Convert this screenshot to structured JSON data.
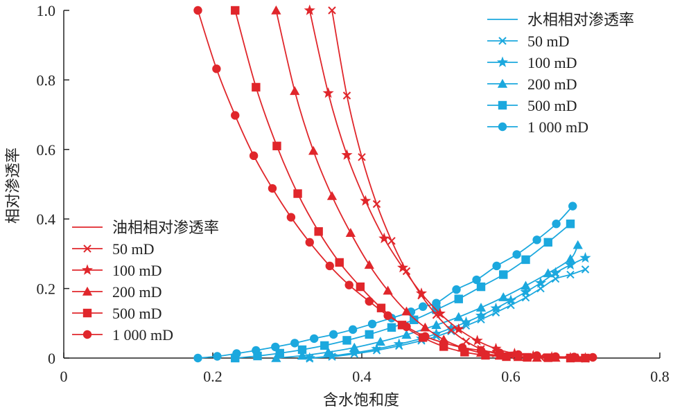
{
  "chart_data": {
    "type": "line",
    "xlabel": "含水饱和度",
    "ylabel": "相对渗透率",
    "xlim": [
      0,
      0.8
    ],
    "ylim": [
      0,
      1.0
    ],
    "xticks": [
      "0",
      "0.2",
      "0.4",
      "0.6",
      "0.8"
    ],
    "yticks": [
      "0",
      "0.2",
      "0.4",
      "0.6",
      "0.8",
      "1.0"
    ],
    "colors": {
      "oil": "#e0262b",
      "water": "#1ba8de"
    },
    "legend_placement": {
      "oil": "bottom-left",
      "water": "top-right"
    },
    "oil_legend": {
      "title": "油相相对渗透率",
      "items": [
        "50 mD",
        "100 mD",
        "200 mD",
        "500 mD",
        "1 000 mD"
      ]
    },
    "water_legend": {
      "title": "水相相对渗透率",
      "items": [
        "50 mD",
        "100 mD",
        "200 mD",
        "500 mD",
        "1 000 mD"
      ]
    },
    "series": [
      {
        "phase": "oil",
        "permeability": "50 mD",
        "marker": "x",
        "x": [
          0.36,
          0.38,
          0.4,
          0.42,
          0.44,
          0.46,
          0.48,
          0.5,
          0.52,
          0.54,
          0.56,
          0.58,
          0.6,
          0.62,
          0.64,
          0.66,
          0.68,
          0.7
        ],
        "y": [
          1.0,
          0.755,
          0.578,
          0.443,
          0.337,
          0.25,
          0.18,
          0.124,
          0.08,
          0.048,
          0.026,
          0.013,
          0.006,
          0.003,
          0.002,
          0.001,
          0.0,
          0.0
        ]
      },
      {
        "phase": "oil",
        "permeability": "100 mD",
        "marker": "star",
        "x": [
          0.33,
          0.355,
          0.38,
          0.405,
          0.43,
          0.455,
          0.48,
          0.505,
          0.53,
          0.555,
          0.58,
          0.605,
          0.63,
          0.655,
          0.68,
          0.7
        ],
        "y": [
          1.0,
          0.762,
          0.584,
          0.452,
          0.344,
          0.26,
          0.186,
          0.128,
          0.083,
          0.05,
          0.027,
          0.013,
          0.006,
          0.003,
          0.001,
          0.0
        ]
      },
      {
        "phase": "oil",
        "permeability": "200 mD",
        "marker": "triangle",
        "x": [
          0.285,
          0.31,
          0.335,
          0.36,
          0.385,
          0.41,
          0.435,
          0.46,
          0.485,
          0.51,
          0.535,
          0.56,
          0.585,
          0.61,
          0.635,
          0.66,
          0.69
        ],
        "y": [
          1.0,
          0.768,
          0.596,
          0.466,
          0.36,
          0.268,
          0.194,
          0.134,
          0.088,
          0.053,
          0.03,
          0.015,
          0.007,
          0.003,
          0.001,
          0.001,
          0.0
        ]
      },
      {
        "phase": "oil",
        "permeability": "500 mD",
        "marker": "square",
        "x": [
          0.23,
          0.258,
          0.286,
          0.314,
          0.342,
          0.37,
          0.398,
          0.426,
          0.454,
          0.482,
          0.51,
          0.538,
          0.566,
          0.594,
          0.622,
          0.65,
          0.68,
          0.7
        ],
        "y": [
          1.0,
          0.779,
          0.61,
          0.473,
          0.364,
          0.275,
          0.205,
          0.144,
          0.095,
          0.059,
          0.033,
          0.017,
          0.008,
          0.004,
          0.002,
          0.001,
          0.0,
          0.0
        ]
      },
      {
        "phase": "oil",
        "permeability": "1 000 mD",
        "marker": "circle",
        "x": [
          0.18,
          0.205,
          0.23,
          0.255,
          0.28,
          0.305,
          0.33,
          0.357,
          0.383,
          0.41,
          0.435,
          0.46,
          0.485,
          0.51,
          0.535,
          0.56,
          0.585,
          0.61,
          0.635,
          0.66,
          0.685,
          0.71
        ],
        "y": [
          1.0,
          0.832,
          0.698,
          0.582,
          0.488,
          0.405,
          0.333,
          0.265,
          0.21,
          0.163,
          0.122,
          0.09,
          0.062,
          0.044,
          0.03,
          0.022,
          0.015,
          0.01,
          0.007,
          0.004,
          0.003,
          0.002
        ]
      },
      {
        "phase": "water",
        "permeability": "50 mD",
        "marker": "x",
        "x": [
          0.33,
          0.36,
          0.39,
          0.42,
          0.45,
          0.48,
          0.5,
          0.52,
          0.54,
          0.56,
          0.58,
          0.6,
          0.62,
          0.64,
          0.66,
          0.68,
          0.7
        ],
        "y": [
          0.0,
          0.004,
          0.012,
          0.022,
          0.035,
          0.05,
          0.062,
          0.077,
          0.093,
          0.111,
          0.131,
          0.152,
          0.174,
          0.2,
          0.228,
          0.24,
          0.255
        ]
      },
      {
        "phase": "water",
        "permeability": "100 mD",
        "marker": "star",
        "x": [
          0.33,
          0.36,
          0.39,
          0.42,
          0.45,
          0.48,
          0.5,
          0.52,
          0.54,
          0.56,
          0.58,
          0.6,
          0.62,
          0.64,
          0.66,
          0.68,
          0.7
        ],
        "y": [
          0.0,
          0.006,
          0.015,
          0.026,
          0.04,
          0.056,
          0.07,
          0.086,
          0.103,
          0.122,
          0.143,
          0.166,
          0.19,
          0.216,
          0.245,
          0.268,
          0.288
        ]
      },
      {
        "phase": "water",
        "permeability": "200 mD",
        "marker": "triangle",
        "x": [
          0.285,
          0.32,
          0.355,
          0.39,
          0.425,
          0.46,
          0.5,
          0.53,
          0.56,
          0.59,
          0.62,
          0.65,
          0.68,
          0.69
        ],
        "y": [
          0.0,
          0.007,
          0.017,
          0.03,
          0.047,
          0.067,
          0.095,
          0.118,
          0.145,
          0.175,
          0.208,
          0.244,
          0.285,
          0.325
        ]
      },
      {
        "phase": "water",
        "permeability": "500 mD",
        "marker": "square",
        "x": [
          0.23,
          0.26,
          0.29,
          0.32,
          0.35,
          0.38,
          0.41,
          0.44,
          0.47,
          0.5,
          0.53,
          0.56,
          0.59,
          0.62,
          0.65,
          0.68
        ],
        "y": [
          0.0,
          0.006,
          0.014,
          0.024,
          0.036,
          0.051,
          0.068,
          0.088,
          0.11,
          0.139,
          0.17,
          0.205,
          0.24,
          0.283,
          0.333,
          0.386
        ]
      },
      {
        "phase": "water",
        "permeability": "1 000 mD",
        "marker": "circle",
        "x": [
          0.18,
          0.206,
          0.232,
          0.258,
          0.284,
          0.31,
          0.336,
          0.362,
          0.388,
          0.414,
          0.44,
          0.466,
          0.482,
          0.5,
          0.527,
          0.554,
          0.581,
          0.608,
          0.635,
          0.661,
          0.683
        ],
        "y": [
          0.0,
          0.005,
          0.013,
          0.022,
          0.032,
          0.043,
          0.056,
          0.068,
          0.082,
          0.098,
          0.115,
          0.133,
          0.148,
          0.158,
          0.197,
          0.225,
          0.265,
          0.298,
          0.34,
          0.386,
          0.437
        ]
      }
    ]
  }
}
